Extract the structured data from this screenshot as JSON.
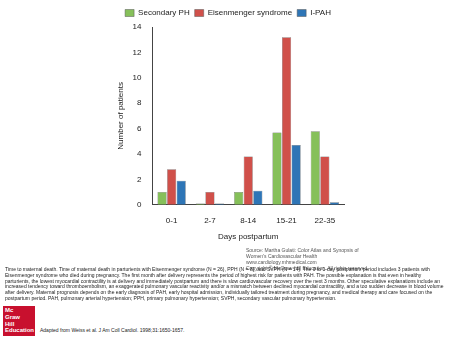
{
  "chart_data": {
    "type": "bar",
    "x_label": "Days postpartum",
    "y_label": "Number of patients",
    "categories": [
      "0-1",
      "2-7",
      "8-14",
      "15-21",
      "22-35"
    ],
    "series": [
      {
        "name": "Secondary PH",
        "color": "#86c05a",
        "values": [
          1,
          0.1,
          1,
          5.7,
          5.8
        ]
      },
      {
        "name": "Eisenmenger syndrome",
        "color": "#d0504a",
        "values": [
          2.8,
          1,
          3.8,
          13.2,
          3.8
        ]
      },
      {
        "name": "I-PAH",
        "color": "#2e75b6",
        "values": [
          1.9,
          0.1,
          1.1,
          4.7,
          0.2
        ]
      }
    ],
    "ylim": [
      0,
      14
    ],
    "yticks": [
      0,
      2,
      4,
      6,
      8,
      10,
      12,
      14
    ],
    "grid": false,
    "legend": "top"
  },
  "source": [
    "Source: Martha Gulati: Color Atlas and Synopsis of",
    "Women's Cardiovascular Health",
    "www.cardiology.mhmedical.com",
    "Copyright © McGraw-Hill Education. All rights reserved."
  ],
  "caption": "Time to maternal death. Time of maternal death in parturients with Eisenmenger syndrome (N = 26), PPH (N = 8), and SVPH (N = 14). The 0 to 1-day postpartum period includes 3 patients with Eisenmenger syndrome who died during pregnancy. The first month after delivery represents the period of highest risk for patients with PAH. The possible explanation is that even in healthy parturients, the lowest myocardial contractility is at delivery and immediately postpartum and there is slow cardiovascular recovery over the next 3 months. Other speculative explanations include an increased tendency toward thromboembolism, an exaggerated pulmonary vascular reactivity and/or a mismatch between declined myocardial contractility, and a too sudden decrease in blood volume after delivery. Maternal prognosis depends on the early diagnosis of PAH, early hospital admission, individually tailored treatment during pregnancy, and medical therapy and care focused on the postpartum period. PAH, pulmonary arterial hypertension; PPH, primary pulmonary hypertension; SVPH, secondary vascular pulmonary hypertension.",
  "credit": "Adapted from Weiss et al. J Am Coll Cardiol. 1998;31:1650-1657.",
  "logo": [
    "Mc",
    "Graw",
    "Hill",
    "Education"
  ]
}
